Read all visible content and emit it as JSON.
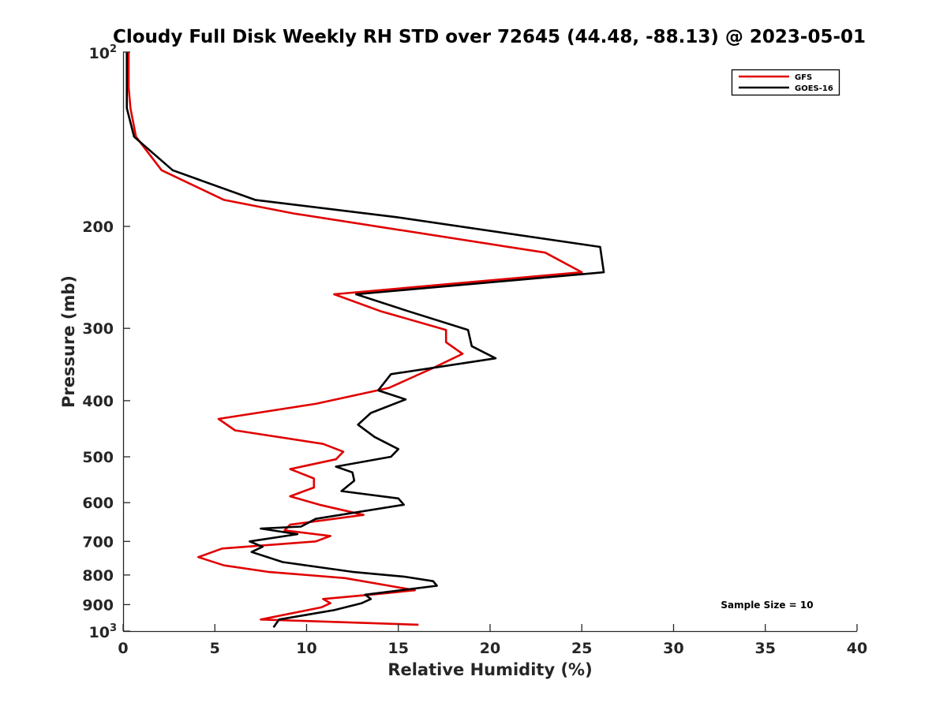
{
  "chart_data": {
    "type": "line",
    "title": "Cloudy Full Disk Weekly RH STD over 72645 (44.48, -88.13) @ 2023-05-01",
    "xlabel": "Relative Humidity (%)",
    "ylabel": "Pressure (mb)",
    "xlim": [
      0,
      40
    ],
    "ylim": [
      100,
      1000
    ],
    "y_scale": "log",
    "y_reversed": true,
    "grid": false,
    "legend_position": "top-right",
    "x_ticks": [
      "0",
      "5",
      "10",
      "15",
      "20",
      "25",
      "30",
      "35",
      "40"
    ],
    "y_ticks": [
      {
        "value": 100,
        "label": "10",
        "sup": "2"
      },
      {
        "value": 200,
        "label": "200",
        "sup": ""
      },
      {
        "value": 300,
        "label": "300",
        "sup": ""
      },
      {
        "value": 400,
        "label": "400",
        "sup": ""
      },
      {
        "value": 500,
        "label": "500",
        "sup": ""
      },
      {
        "value": 600,
        "label": "600",
        "sup": ""
      },
      {
        "value": 700,
        "label": "700",
        "sup": ""
      },
      {
        "value": 800,
        "label": "800",
        "sup": ""
      },
      {
        "value": 900,
        "label": "900",
        "sup": ""
      },
      {
        "value": 1000,
        "label": "10",
        "sup": "3"
      }
    ],
    "series": [
      {
        "name": "GFS",
        "color": "#e00000",
        "points": [
          [
            0.3,
            100
          ],
          [
            0.3,
            115
          ],
          [
            0.4,
            125
          ],
          [
            0.7,
            140
          ],
          [
            2.1,
            160
          ],
          [
            5.5,
            180
          ],
          [
            9.3,
            190
          ],
          [
            23.0,
            222
          ],
          [
            25.0,
            240
          ],
          [
            11.5,
            262
          ],
          [
            14.0,
            280
          ],
          [
            17.6,
            302
          ],
          [
            17.6,
            317
          ],
          [
            18.5,
            332
          ],
          [
            17.0,
            350
          ],
          [
            14.5,
            380
          ],
          [
            10.5,
            405
          ],
          [
            5.2,
            430
          ],
          [
            6.1,
            450
          ],
          [
            10.9,
            475
          ],
          [
            12.0,
            490
          ],
          [
            11.6,
            505
          ],
          [
            9.1,
            525
          ],
          [
            10.4,
            545
          ],
          [
            10.4,
            565
          ],
          [
            9.1,
            585
          ],
          [
            10.7,
            605
          ],
          [
            13.1,
            630
          ],
          [
            9.1,
            655
          ],
          [
            8.8,
            670
          ],
          [
            11.3,
            685
          ],
          [
            10.5,
            700
          ],
          [
            5.4,
            720
          ],
          [
            4.1,
            745
          ],
          [
            5.5,
            770
          ],
          [
            7.9,
            790
          ],
          [
            12.1,
            810
          ],
          [
            14.5,
            835
          ],
          [
            15.9,
            850
          ],
          [
            14.0,
            862
          ],
          [
            10.9,
            880
          ],
          [
            11.3,
            895
          ],
          [
            10.8,
            910
          ],
          [
            7.5,
            955
          ],
          [
            16.1,
            975
          ]
        ]
      },
      {
        "name": "GOES-16",
        "color": "#000000",
        "points": [
          [
            0.2,
            100
          ],
          [
            0.2,
            115
          ],
          [
            0.2,
            125
          ],
          [
            0.6,
            140
          ],
          [
            2.7,
            160
          ],
          [
            7.2,
            180
          ],
          [
            15.0,
            193
          ],
          [
            26.0,
            217
          ],
          [
            26.2,
            240
          ],
          [
            12.7,
            262
          ],
          [
            15.5,
            280
          ],
          [
            18.8,
            302
          ],
          [
            19.0,
            322
          ],
          [
            20.3,
            338
          ],
          [
            14.6,
            360
          ],
          [
            13.9,
            384
          ],
          [
            15.4,
            398
          ],
          [
            13.5,
            420
          ],
          [
            12.8,
            440
          ],
          [
            13.7,
            462
          ],
          [
            15.0,
            485
          ],
          [
            14.6,
            500
          ],
          [
            11.6,
            520
          ],
          [
            12.5,
            532
          ],
          [
            12.6,
            550
          ],
          [
            11.9,
            573
          ],
          [
            15.0,
            590
          ],
          [
            15.3,
            605
          ],
          [
            10.5,
            640
          ],
          [
            9.7,
            660
          ],
          [
            7.5,
            665
          ],
          [
            9.5,
            680
          ],
          [
            6.9,
            700
          ],
          [
            7.6,
            715
          ],
          [
            7.0,
            730
          ],
          [
            8.7,
            760
          ],
          [
            12.5,
            790
          ],
          [
            15.3,
            805
          ],
          [
            16.9,
            820
          ],
          [
            17.1,
            835
          ],
          [
            13.2,
            865
          ],
          [
            13.5,
            880
          ],
          [
            13.0,
            895
          ],
          [
            11.5,
            920
          ],
          [
            8.5,
            955
          ],
          [
            8.2,
            985
          ]
        ]
      }
    ],
    "annotation": "Sample Size = 10"
  }
}
